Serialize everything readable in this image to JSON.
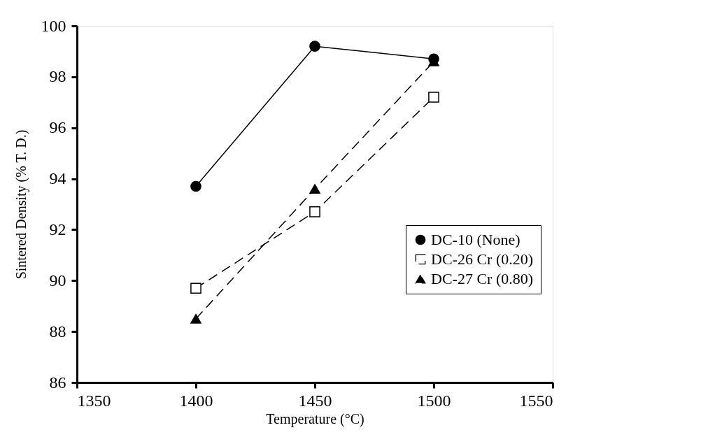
{
  "chart_data": {
    "type": "line",
    "xlabel": "Temperature (°C)",
    "ylabel": "Sintered Density (% T. D.)",
    "x": [
      1400,
      1450,
      1500
    ],
    "series": [
      {
        "name": "DC-10  (None)",
        "color": "#000000",
        "values": [
          93.7,
          99.2,
          98.7
        ],
        "marker": "circle",
        "line_style": "solid"
      },
      {
        "name": "DC-26 Cr (0.20)",
        "color": "#000000",
        "values": [
          89.7,
          92.7,
          97.2
        ],
        "marker": "square",
        "line_style": "dashed"
      },
      {
        "name": "DC-27 Cr (0.80)",
        "color": "#000000",
        "values": [
          88.5,
          93.6,
          98.6
        ],
        "marker": "triangle",
        "line_style": "dashed"
      }
    ],
    "xlim": [
      1350,
      1550
    ],
    "xticks": [
      1350,
      1400,
      1450,
      1500,
      1550
    ],
    "ylim": [
      86,
      100
    ],
    "yticks": [
      86,
      88,
      90,
      92,
      94,
      96,
      98,
      100
    ],
    "grid": false,
    "legend": "right"
  }
}
